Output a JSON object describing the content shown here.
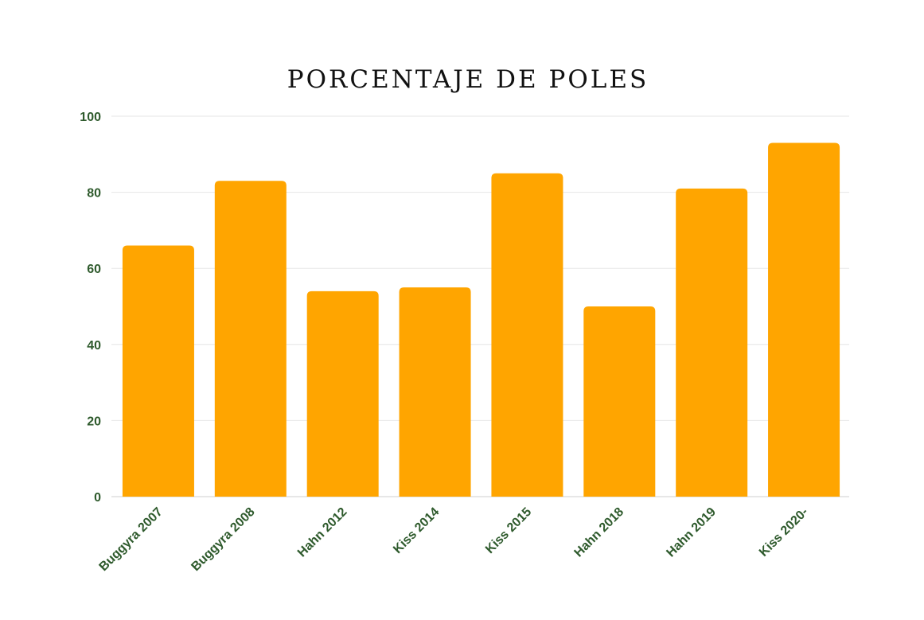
{
  "chart_data": {
    "type": "bar",
    "title": "PORCENTAJE DE POLES",
    "xlabel": "",
    "ylabel": "",
    "categories": [
      "Buggyra 2007",
      "Buggyra 2008",
      "Hahn 2012",
      "Kiss 2014",
      "Kiss 2015",
      "Hahn 2018",
      "Hahn 2019",
      "Kiss 2020-"
    ],
    "values": [
      66,
      83,
      54,
      55,
      85,
      50,
      81,
      93
    ],
    "ylim": [
      0,
      100
    ],
    "yticks": [
      0,
      20,
      40,
      60,
      80,
      100
    ],
    "grid": true,
    "legend": "none",
    "colors": {
      "bar": "#FFA500",
      "axis_text": "#2e5a2c",
      "grid": "#e6e6e6"
    }
  }
}
